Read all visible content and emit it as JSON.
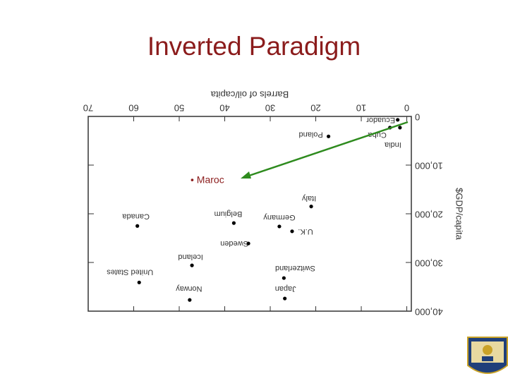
{
  "title": "Inverted Paradigm",
  "annotation": "• Maroc",
  "chart_data": {
    "type": "scatter",
    "rotated_180": true,
    "xlabel": "Barrels of oil/capita",
    "ylabel": "$GDP/capita",
    "xlim": [
      -1,
      70
    ],
    "ylim": [
      0,
      40000
    ],
    "xticks": [
      0,
      10,
      20,
      30,
      40,
      50,
      60,
      70
    ],
    "yticks": [
      0,
      {
        "value": 10000,
        "label": "10,000"
      },
      {
        "value": 20000,
        "label": "20,000"
      },
      {
        "value": 30000,
        "label": "30,000"
      },
      {
        "value": 40000,
        "label": "40,000"
      }
    ],
    "series": [
      {
        "color": "#000000",
        "labels": [
          "Ecuador",
          "India",
          "Cuba",
          "Poland",
          "Italy",
          "Germany",
          "U.K.",
          "Belgium",
          "Sweden",
          "Canada",
          "Iceland",
          "United States",
          "Switzerland",
          "Norway",
          "Japan"
        ],
        "x": [
          2,
          1.5,
          3.7,
          17.2,
          21,
          28,
          25.2,
          38,
          34.8,
          59.2,
          47.2,
          58.8,
          27,
          47.7,
          26.8
        ],
        "values": [
          700,
          2300,
          2300,
          4100,
          18500,
          22600,
          23600,
          21900,
          26100,
          22500,
          30600,
          34100,
          33200,
          37700,
          37400
        ]
      }
    ]
  }
}
